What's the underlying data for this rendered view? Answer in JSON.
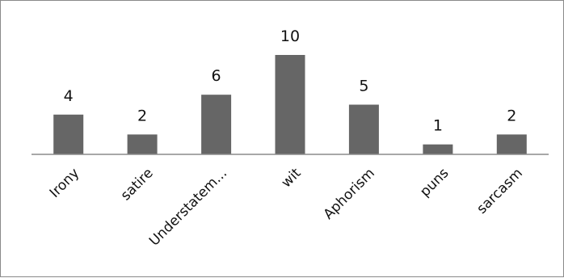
{
  "chart_data": {
    "type": "bar",
    "categories": [
      "Irony",
      "satire",
      "Understatem...",
      "wit",
      "Aphorism",
      "puns",
      "sarcasm"
    ],
    "values": [
      4,
      2,
      6,
      10,
      5,
      1,
      2
    ],
    "data_labels": [
      "4",
      "2",
      "6",
      "10",
      "5",
      "1",
      "2"
    ],
    "bar_color": "#666666",
    "axis_color": "#8c8c8c",
    "grid": false,
    "legend": "none",
    "ylim": [
      0,
      10
    ]
  }
}
